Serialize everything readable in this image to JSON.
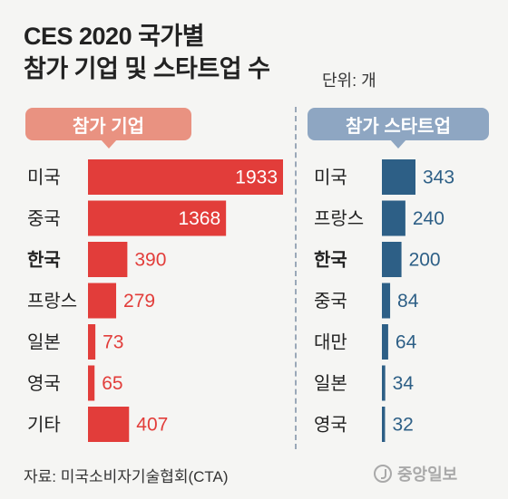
{
  "title_line1": "CES 2020 국가별",
  "title_line2": "참가 기업 및 스타트업 수",
  "unit": "단위: 개",
  "source": "자료: 미국소비자기술협회(CTA)",
  "logo_text": "중앙일보",
  "colors": {
    "companies_bar": "#e23d3a",
    "startups_bar": "#2d5f86",
    "companies_label_bg": "#e99281",
    "startups_label_bg": "#8ea6c2"
  },
  "chart_data": [
    {
      "type": "bar",
      "title": "참가 기업",
      "categories": [
        "미국",
        "중국",
        "한국",
        "프랑스",
        "일본",
        "영국",
        "기타"
      ],
      "values": [
        1933,
        1368,
        390,
        279,
        73,
        65,
        407
      ],
      "highlight": "한국",
      "xlim": [
        0,
        1933
      ]
    },
    {
      "type": "bar",
      "title": "참가 스타트업",
      "categories": [
        "미국",
        "프랑스",
        "한국",
        "중국",
        "대만",
        "일본",
        "영국"
      ],
      "values": [
        343,
        240,
        200,
        84,
        64,
        34,
        32
      ],
      "highlight": "한국",
      "xlim": [
        0,
        343
      ]
    }
  ]
}
